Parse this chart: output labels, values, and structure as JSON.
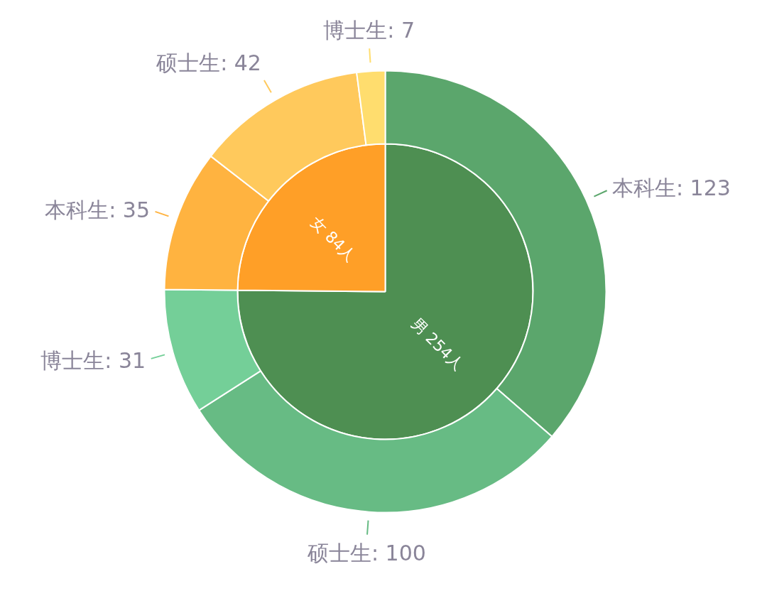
{
  "chart_data": {
    "type": "pie",
    "series": [
      {
        "values": [
          254,
          84
        ],
        "colors": [
          "#4e8f52",
          "#ff9f27"
        ],
        "value_labels": [
          "男 254人",
          "女 84人"
        ]
      },
      {
        "values": [
          123,
          100,
          31,
          35,
          42,
          7
        ],
        "colors": [
          "#5ba66c",
          "#67bb84",
          "#74cf98",
          "#ffb340",
          "#ffc95c",
          "#ffdd6e"
        ],
        "value_labels": [
          "本科生: 123",
          "硕士生: 100",
          "博士生: 31",
          "本科生: 35",
          "硕士生: 42",
          "博士生: 7"
        ]
      }
    ]
  }
}
